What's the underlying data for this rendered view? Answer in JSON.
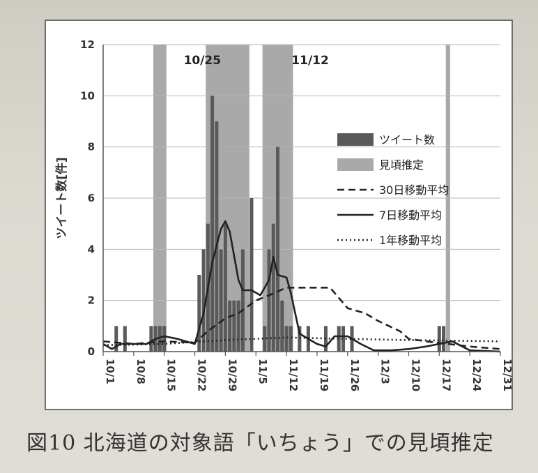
{
  "figure_caption": "図10 北海道の対象語「いちょう」での見頃推定",
  "colors": {
    "tweets": "#5a5a5a",
    "mirokoro": "#a9a9a9",
    "line": "#222222",
    "grid": "#b5b5b5"
  },
  "chart_data": {
    "type": "bar",
    "title": "",
    "ylabel": "ツイート数[件]",
    "xlabel": "",
    "ylim": [
      0,
      12
    ],
    "yticks": [
      "0",
      "2",
      "4",
      "6",
      "8",
      "10",
      "12"
    ],
    "x_start": "10/1",
    "x_end": "12/31",
    "xticks": [
      "10/1",
      "10/8",
      "10/15",
      "10/22",
      "10/29",
      "11/5",
      "11/12",
      "11/19",
      "11/26",
      "12/3",
      "12/10",
      "12/17",
      "12/24",
      "12/31"
    ],
    "annotations": [
      "10/25",
      "11/12"
    ],
    "grid": "horizontal",
    "legend_position": "right",
    "legend": [
      "ツイート数",
      "見頃推定",
      "30日移動平均",
      "7日移動平均",
      "1年移動平均"
    ],
    "mirokoro_ranges": [
      [
        "10/13",
        "10/15"
      ],
      [
        "10/25",
        "11/3"
      ],
      [
        "11/7",
        "11/13"
      ],
      [
        "12/19",
        "12/19"
      ]
    ],
    "tweets": [
      [
        "10/4",
        1
      ],
      [
        "10/6",
        1
      ],
      [
        "10/12",
        1
      ],
      [
        "10/13",
        1
      ],
      [
        "10/14",
        1
      ],
      [
        "10/15",
        1
      ],
      [
        "10/23",
        3
      ],
      [
        "10/24",
        4
      ],
      [
        "10/25",
        5
      ],
      [
        "10/26",
        10
      ],
      [
        "10/27",
        9
      ],
      [
        "10/28",
        4
      ],
      [
        "10/29",
        5
      ],
      [
        "10/30",
        2
      ],
      [
        "10/31",
        2
      ],
      [
        "11/1",
        2
      ],
      [
        "11/2",
        4
      ],
      [
        "11/4",
        6
      ],
      [
        "11/7",
        1
      ],
      [
        "11/8",
        4
      ],
      [
        "11/9",
        5
      ],
      [
        "11/10",
        8
      ],
      [
        "11/11",
        2
      ],
      [
        "11/12",
        1
      ],
      [
        "11/13",
        1
      ],
      [
        "11/15",
        1
      ],
      [
        "11/17",
        1
      ],
      [
        "11/21",
        1
      ],
      [
        "11/24",
        1
      ],
      [
        "11/25",
        1
      ],
      [
        "11/27",
        1
      ],
      [
        "12/17",
        1
      ],
      [
        "12/18",
        1
      ]
    ],
    "series": [
      {
        "name": "30日移動平均",
        "style": "dashed",
        "points": [
          [
            "10/1",
            0.4
          ],
          [
            "10/8",
            0.3
          ],
          [
            "10/15",
            0.4
          ],
          [
            "10/22",
            0.35
          ],
          [
            "10/25",
            0.8
          ],
          [
            "10/29",
            1.3
          ],
          [
            "11/1",
            1.5
          ],
          [
            "11/5",
            2.0
          ],
          [
            "11/8",
            2.2
          ],
          [
            "11/12",
            2.5
          ],
          [
            "11/16",
            2.5
          ],
          [
            "11/22",
            2.5
          ],
          [
            "11/26",
            1.7
          ],
          [
            "11/30",
            1.5
          ],
          [
            "12/3",
            1.2
          ],
          [
            "12/8",
            0.8
          ],
          [
            "12/10",
            0.5
          ],
          [
            "12/14",
            0.4
          ],
          [
            "12/19",
            0.3
          ],
          [
            "12/24",
            0.2
          ],
          [
            "12/31",
            0.1
          ]
        ]
      },
      {
        "name": "7日移動平均",
        "style": "solid",
        "points": [
          [
            "10/1",
            0.3
          ],
          [
            "10/3",
            0.1
          ],
          [
            "10/5",
            0.3
          ],
          [
            "10/8",
            0.3
          ],
          [
            "10/11",
            0.3
          ],
          [
            "10/13",
            0.5
          ],
          [
            "10/15",
            0.6
          ],
          [
            "10/18",
            0.5
          ],
          [
            "10/22",
            0.3
          ],
          [
            "10/24",
            1.5
          ],
          [
            "10/26",
            3.5
          ],
          [
            "10/28",
            4.8
          ],
          [
            "10/29",
            5.1
          ],
          [
            "10/30",
            4.7
          ],
          [
            "11/1",
            2.8
          ],
          [
            "11/2",
            2.4
          ],
          [
            "11/4",
            2.4
          ],
          [
            "11/6",
            2.2
          ],
          [
            "11/8",
            2.8
          ],
          [
            "11/9",
            3.7
          ],
          [
            "11/10",
            3.0
          ],
          [
            "11/12",
            2.9
          ],
          [
            "11/13",
            2.3
          ],
          [
            "11/15",
            0.7
          ],
          [
            "11/17",
            0.5
          ],
          [
            "11/19",
            0.3
          ],
          [
            "11/21",
            0.2
          ],
          [
            "11/23",
            0.6
          ],
          [
            "11/26",
            0.6
          ],
          [
            "11/29",
            0.3
          ],
          [
            "12/2",
            0.05
          ],
          [
            "12/6",
            0.05
          ],
          [
            "12/10",
            0.1
          ],
          [
            "12/14",
            0.2
          ],
          [
            "12/17",
            0.3
          ],
          [
            "12/20",
            0.4
          ],
          [
            "12/24",
            0.05
          ],
          [
            "12/31",
            0.0
          ]
        ]
      },
      {
        "name": "1年移動平均",
        "style": "dotted",
        "points": [
          [
            "10/1",
            0.25
          ],
          [
            "10/15",
            0.3
          ],
          [
            "10/29",
            0.45
          ],
          [
            "11/12",
            0.55
          ],
          [
            "11/26",
            0.5
          ],
          [
            "12/10",
            0.45
          ],
          [
            "12/31",
            0.4
          ]
        ]
      }
    ]
  }
}
